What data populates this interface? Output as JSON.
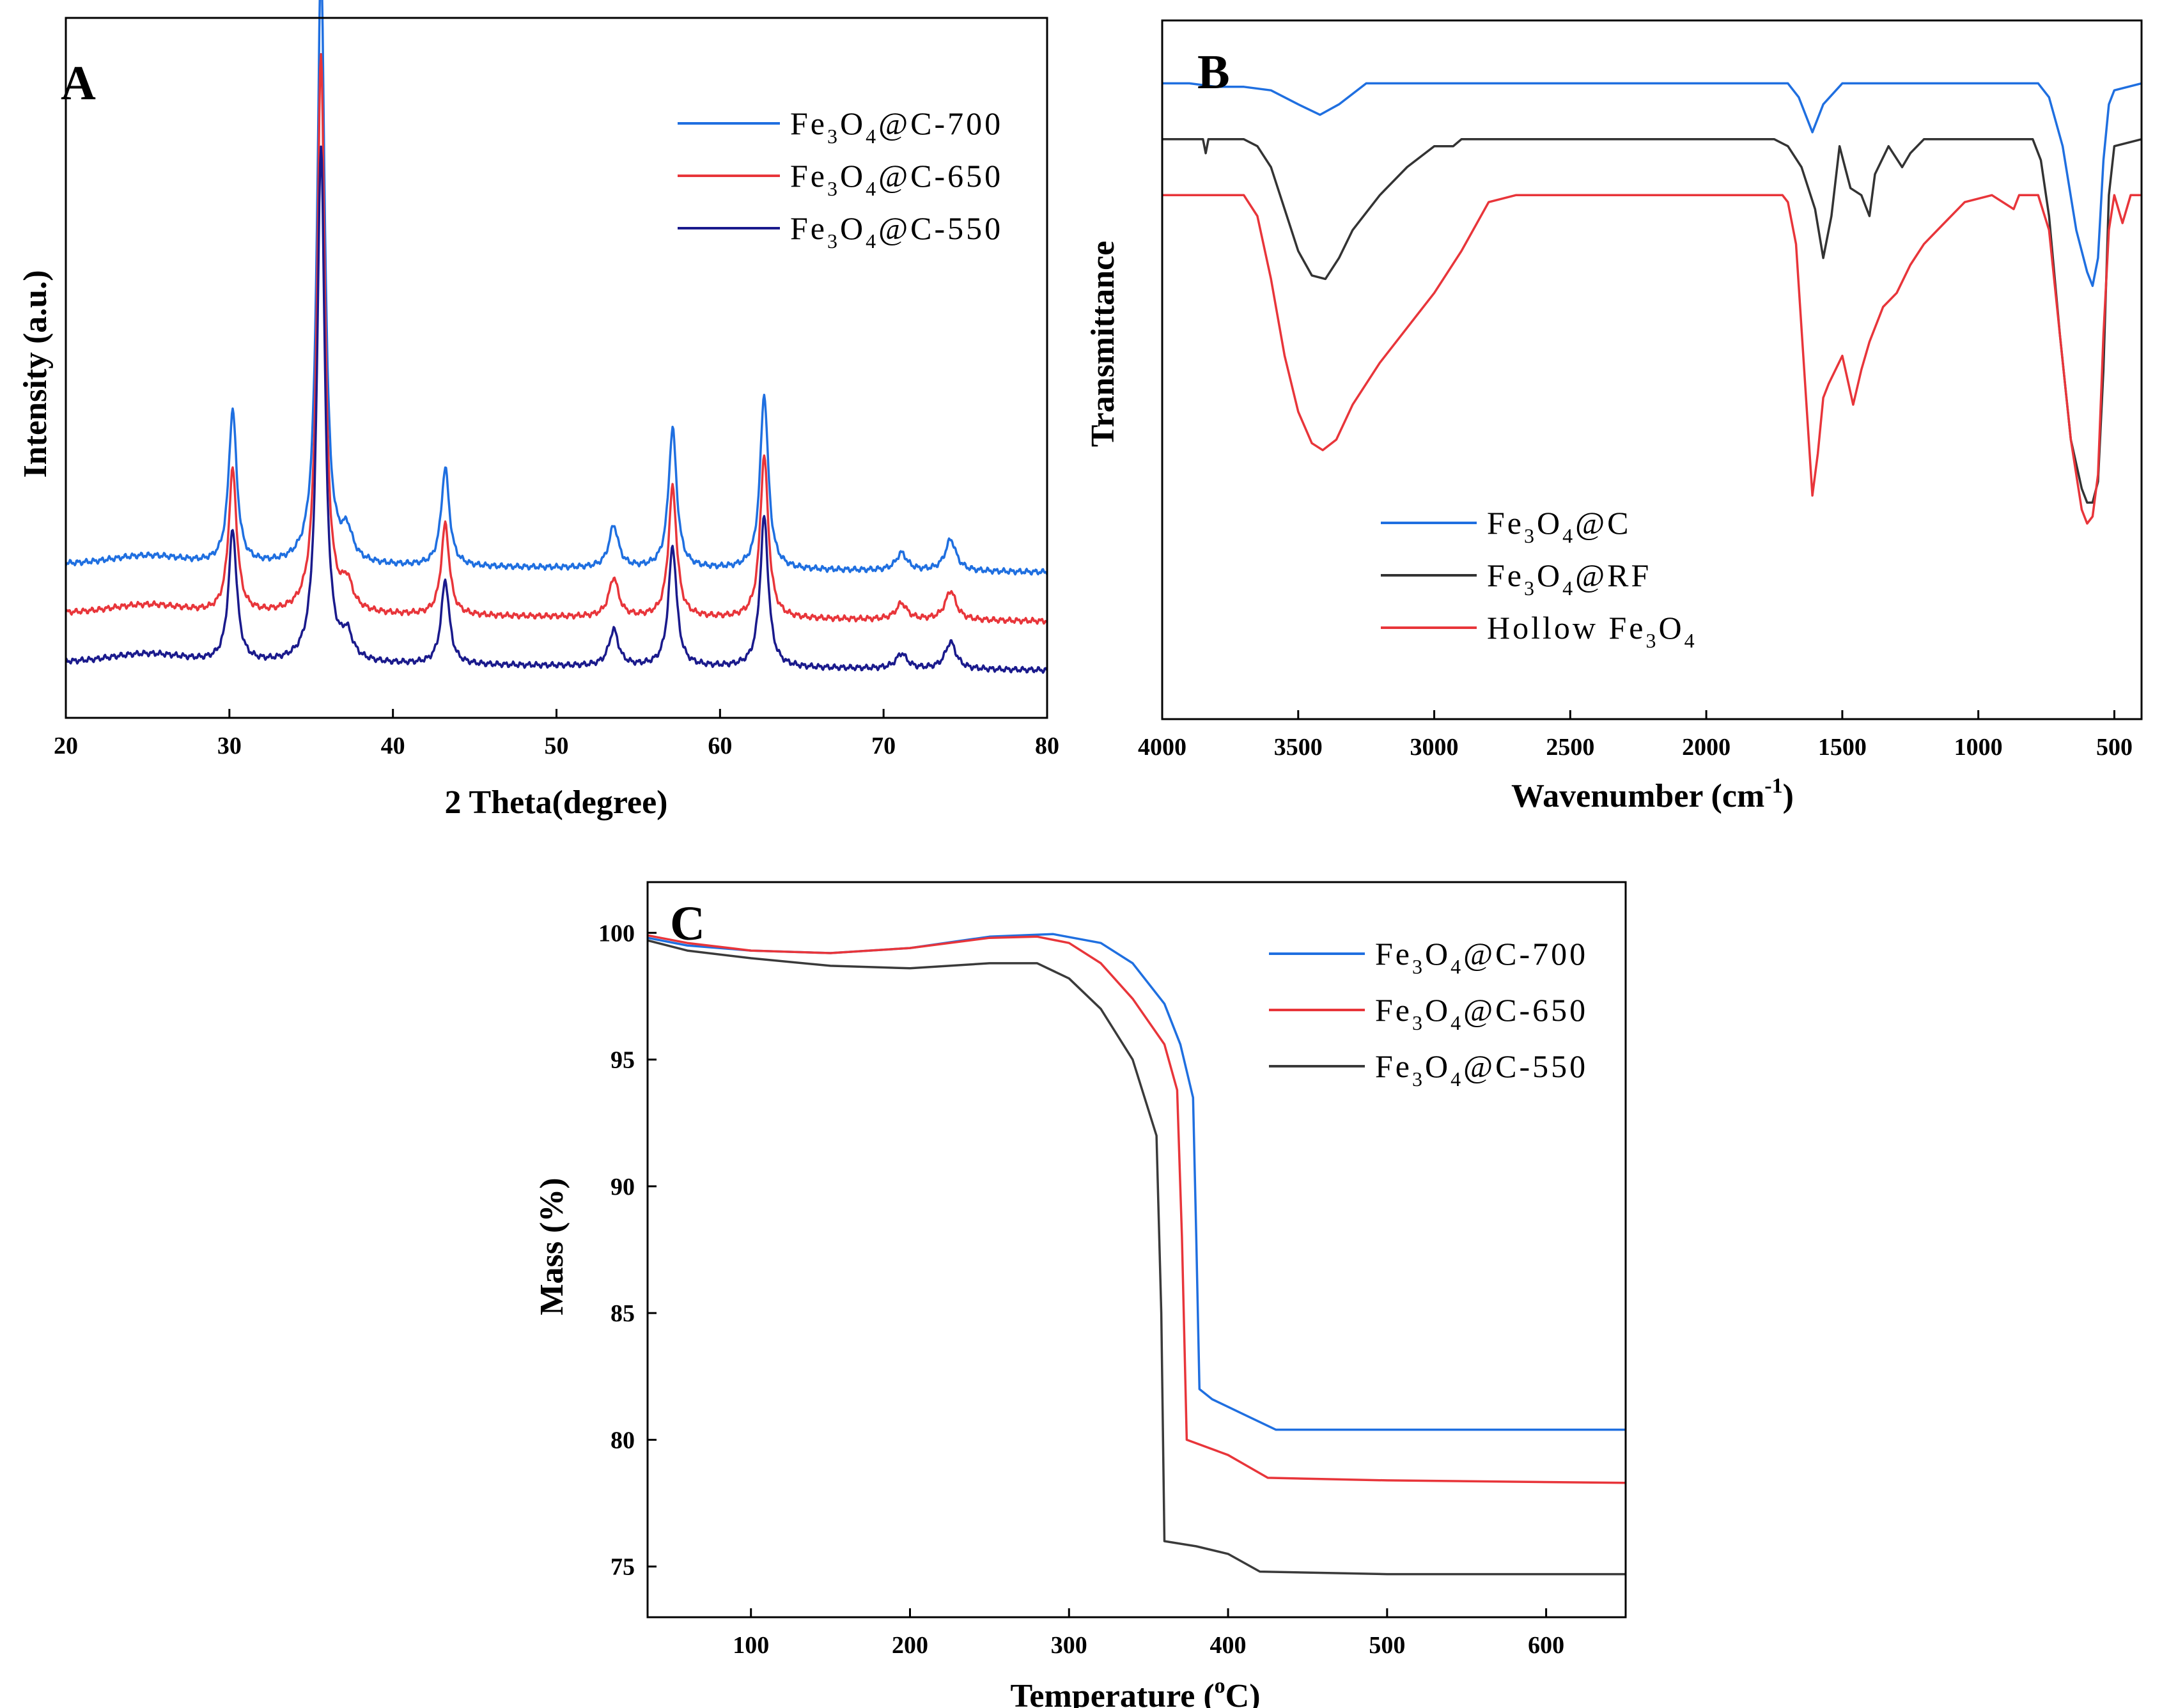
{
  "chart_data": [
    {
      "panel": "A",
      "type": "line",
      "xlabel": "2 Theta(degree)",
      "ylabel": "Intensity (a.u.)",
      "xlim": [
        20,
        80
      ],
      "ylim": [
        0,
        100
      ],
      "xticks": [
        20,
        30,
        40,
        50,
        60,
        70,
        80
      ],
      "yticks": [],
      "legend_position": "top-right",
      "peaks": [
        {
          "x": 30.2,
          "h": 22,
          "w": 0.3
        },
        {
          "x": 35.6,
          "h": 86,
          "w": 0.28
        },
        {
          "x": 37.2,
          "h": 4,
          "w": 0.4
        },
        {
          "x": 43.2,
          "h": 14,
          "w": 0.3
        },
        {
          "x": 53.5,
          "h": 6,
          "w": 0.35
        },
        {
          "x": 57.1,
          "h": 20,
          "w": 0.3
        },
        {
          "x": 62.7,
          "h": 25,
          "w": 0.3
        },
        {
          "x": 71.1,
          "h": 2.5,
          "w": 0.4
        },
        {
          "x": 74.1,
          "h": 4.5,
          "w": 0.4
        }
      ],
      "series": [
        {
          "name": "Fe3O4@C-700",
          "label_parts": [
            "Fe",
            "3",
            "O",
            "4",
            "@C-700"
          ],
          "color": "#1f6fe0",
          "baseline": 22,
          "scale": 1.0
        },
        {
          "name": "Fe3O4@C-650",
          "label_parts": [
            "Fe",
            "3",
            "O",
            "4",
            "@C-650"
          ],
          "color": "#e8353a",
          "baseline": 15,
          "scale": 0.93
        },
        {
          "name": "Fe3O4@C-550",
          "label_parts": [
            "Fe",
            "3",
            "O",
            "4",
            "@C-550"
          ],
          "color": "#1a1a8c",
          "baseline": 8,
          "scale": 0.86
        }
      ]
    },
    {
      "panel": "B",
      "type": "line",
      "xlabel": "Wavenumber (cm",
      "xlabel_sup": "-1",
      "xlabel_end": ")",
      "ylabel": "Transmittance",
      "xlim": [
        4000,
        400
      ],
      "ylim": [
        0,
        100
      ],
      "xticks": [
        4000,
        3500,
        3000,
        2500,
        2000,
        1500,
        1000,
        500
      ],
      "yticks": [],
      "legend_position": "bottom-left",
      "series": [
        {
          "name": "Fe3O4@C",
          "label_parts": [
            "Fe",
            "3",
            "O",
            "4",
            "@C"
          ],
          "color": "#1f6fe0",
          "points": [
            [
              4000,
              91
            ],
            [
              3900,
              91
            ],
            [
              3800,
              90.5
            ],
            [
              3700,
              90.5
            ],
            [
              3600,
              90
            ],
            [
              3500,
              88
            ],
            [
              3420,
              86.5
            ],
            [
              3350,
              88
            ],
            [
              3250,
              91
            ],
            [
              3100,
              91
            ],
            [
              2500,
              91
            ],
            [
              1700,
              91
            ],
            [
              1660,
              89
            ],
            [
              1610,
              84
            ],
            [
              1570,
              88
            ],
            [
              1500,
              91
            ],
            [
              1000,
              91
            ],
            [
              780,
              91
            ],
            [
              740,
              89
            ],
            [
              690,
              82
            ],
            [
              640,
              70
            ],
            [
              600,
              64
            ],
            [
              580,
              62
            ],
            [
              560,
              66
            ],
            [
              540,
              80
            ],
            [
              520,
              88
            ],
            [
              500,
              90
            ],
            [
              400,
              91
            ]
          ]
        },
        {
          "name": "Fe3O4@RF",
          "label_parts": [
            "Fe",
            "3",
            "O",
            "4",
            "@RF"
          ],
          "color": "#333333",
          "points": [
            [
              4000,
              83
            ],
            [
              3850,
              83
            ],
            [
              3840,
              81
            ],
            [
              3830,
              83
            ],
            [
              3700,
              83
            ],
            [
              3650,
              82
            ],
            [
              3600,
              79
            ],
            [
              3550,
              73
            ],
            [
              3500,
              67
            ],
            [
              3450,
              63.5
            ],
            [
              3400,
              63
            ],
            [
              3350,
              66
            ],
            [
              3300,
              70
            ],
            [
              3200,
              75
            ],
            [
              3100,
              79
            ],
            [
              3000,
              82
            ],
            [
              2930,
              82
            ],
            [
              2900,
              83
            ],
            [
              2500,
              83
            ],
            [
              1750,
              83
            ],
            [
              1700,
              82
            ],
            [
              1650,
              79
            ],
            [
              1600,
              73
            ],
            [
              1570,
              66
            ],
            [
              1540,
              72
            ],
            [
              1510,
              82
            ],
            [
              1490,
              79
            ],
            [
              1470,
              76
            ],
            [
              1430,
              75
            ],
            [
              1400,
              72
            ],
            [
              1380,
              78
            ],
            [
              1330,
              82
            ],
            [
              1280,
              79
            ],
            [
              1250,
              81
            ],
            [
              1200,
              83
            ],
            [
              800,
              83
            ],
            [
              770,
              80
            ],
            [
              740,
              72
            ],
            [
              700,
              55
            ],
            [
              660,
              40
            ],
            [
              620,
              33
            ],
            [
              600,
              31
            ],
            [
              580,
              31
            ],
            [
              560,
              34
            ],
            [
              540,
              50
            ],
            [
              520,
              75
            ],
            [
              500,
              82
            ],
            [
              400,
              83
            ]
          ]
        },
        {
          "name": "Hollow Fe3O4",
          "label_parts": [
            "Hollow Fe",
            "3",
            "O",
            "4",
            ""
          ],
          "color": "#e8353a",
          "points": [
            [
              4000,
              75
            ],
            [
              3700,
              75
            ],
            [
              3650,
              72
            ],
            [
              3600,
              63
            ],
            [
              3550,
              52
            ],
            [
              3500,
              44
            ],
            [
              3450,
              39.5
            ],
            [
              3410,
              38.5
            ],
            [
              3360,
              40
            ],
            [
              3300,
              45
            ],
            [
              3200,
              51
            ],
            [
              3100,
              56
            ],
            [
              3000,
              61
            ],
            [
              2900,
              67
            ],
            [
              2800,
              74
            ],
            [
              2700,
              75
            ],
            [
              1720,
              75
            ],
            [
              1700,
              74
            ],
            [
              1670,
              68
            ],
            [
              1640,
              50
            ],
            [
              1610,
              32
            ],
            [
              1590,
              38
            ],
            [
              1570,
              46
            ],
            [
              1550,
              48
            ],
            [
              1500,
              52
            ],
            [
              1460,
              45
            ],
            [
              1430,
              50
            ],
            [
              1400,
              54
            ],
            [
              1350,
              59
            ],
            [
              1300,
              61
            ],
            [
              1250,
              65
            ],
            [
              1200,
              68
            ],
            [
              1150,
              70
            ],
            [
              1100,
              72
            ],
            [
              1050,
              74
            ],
            [
              950,
              75
            ],
            [
              870,
              73
            ],
            [
              850,
              75
            ],
            [
              780,
              75
            ],
            [
              740,
              70
            ],
            [
              700,
              55
            ],
            [
              660,
              40
            ],
            [
              620,
              30
            ],
            [
              600,
              28
            ],
            [
              580,
              29
            ],
            [
              560,
              35
            ],
            [
              540,
              55
            ],
            [
              520,
              70
            ],
            [
              500,
              75
            ],
            [
              470,
              71
            ],
            [
              440,
              75
            ],
            [
              400,
              75
            ]
          ]
        }
      ]
    },
    {
      "panel": "C",
      "type": "line",
      "xlabel": "Temperature (",
      "xlabel_sup": "o",
      "xlabel_end": "C)",
      "ylabel": "Mass (%)",
      "xlim": [
        35,
        650
      ],
      "ylim": [
        73,
        102
      ],
      "xticks": [
        100,
        200,
        300,
        400,
        500,
        600
      ],
      "yticks": [
        75,
        80,
        85,
        90,
        95,
        100
      ],
      "legend_position": "top-right",
      "series": [
        {
          "name": "Fe3O4@C-700",
          "label_parts": [
            "Fe",
            "3",
            "O",
            "4",
            "@C-700"
          ],
          "color": "#1f6fe0",
          "points": [
            [
              35,
              99.8
            ],
            [
              60,
              99.5
            ],
            [
              100,
              99.3
            ],
            [
              150,
              99.2
            ],
            [
              200,
              99.4
            ],
            [
              250,
              99.85
            ],
            [
              290,
              99.95
            ],
            [
              320,
              99.6
            ],
            [
              340,
              98.8
            ],
            [
              360,
              97.2
            ],
            [
              370,
              95.6
            ],
            [
              378,
              93.5
            ],
            [
              380,
              88
            ],
            [
              382,
              82
            ],
            [
              390,
              81.6
            ],
            [
              410,
              81
            ],
            [
              430,
              80.4
            ],
            [
              500,
              80.4
            ],
            [
              650,
              80.4
            ]
          ]
        },
        {
          "name": "Fe3O4@C-650",
          "label_parts": [
            "Fe",
            "3",
            "O",
            "4",
            "@C-650"
          ],
          "color": "#e8353a",
          "points": [
            [
              35,
              99.9
            ],
            [
              60,
              99.6
            ],
            [
              100,
              99.3
            ],
            [
              150,
              99.2
            ],
            [
              200,
              99.4
            ],
            [
              250,
              99.8
            ],
            [
              280,
              99.85
            ],
            [
              300,
              99.6
            ],
            [
              320,
              98.8
            ],
            [
              340,
              97.4
            ],
            [
              360,
              95.6
            ],
            [
              368,
              93.8
            ],
            [
              371,
              88
            ],
            [
              374,
              80
            ],
            [
              400,
              79.4
            ],
            [
              425,
              78.5
            ],
            [
              500,
              78.4
            ],
            [
              650,
              78.3
            ]
          ]
        },
        {
          "name": "Fe3O4@C-550",
          "label_parts": [
            "Fe",
            "3",
            "O",
            "4",
            "@C-550"
          ],
          "color": "#3a3a3a",
          "points": [
            [
              35,
              99.7
            ],
            [
              60,
              99.3
            ],
            [
              100,
              99
            ],
            [
              150,
              98.7
            ],
            [
              200,
              98.6
            ],
            [
              250,
              98.8
            ],
            [
              280,
              98.8
            ],
            [
              300,
              98.2
            ],
            [
              320,
              97
            ],
            [
              340,
              95
            ],
            [
              355,
              92
            ],
            [
              358,
              85
            ],
            [
              360,
              76
            ],
            [
              380,
              75.8
            ],
            [
              400,
              75.5
            ],
            [
              420,
              74.8
            ],
            [
              500,
              74.7
            ],
            [
              650,
              74.7
            ]
          ]
        }
      ]
    }
  ]
}
